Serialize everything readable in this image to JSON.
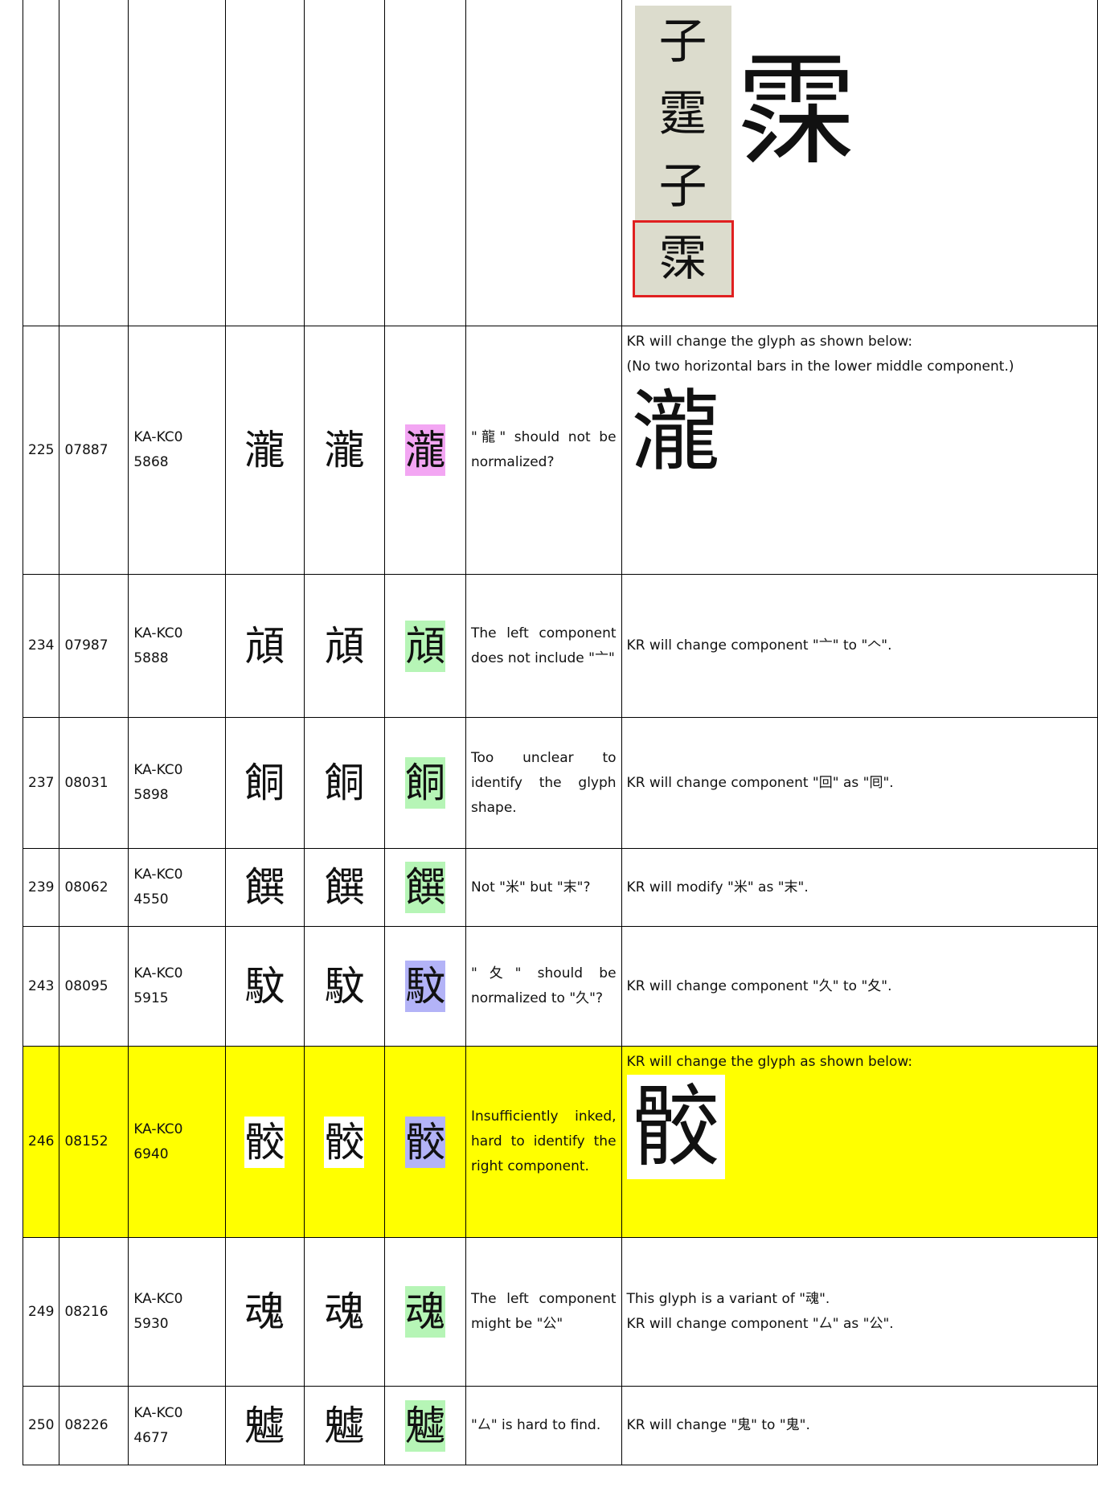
{
  "table": {
    "rows": [
      {
        "scan_text": [
          "子",
          "霆",
          "子",
          "霂"
        ],
        "response_glyph": "霂"
      },
      {
        "no": "225",
        "code": "07887",
        "source": "KA-KC0 5868",
        "glyph": "瀧",
        "scan": "瀧",
        "proposed": "瀧",
        "proposed_color": "#f3a6f3",
        "comment": "\"龍\" should not be normalized?",
        "response": [
          "KR will change the glyph as shown below:",
          "(No two horizontal bars in the lower middle component.)"
        ],
        "response_glyph": "瀧"
      },
      {
        "no": "234",
        "code": "07987",
        "source": "KA-KC0 5888",
        "glyph": "頏",
        "scan": "頏",
        "proposed": "頏",
        "proposed_color": "#b6f5b6",
        "comment": "The left component does not include \"亠\"",
        "response": [
          "KR will change component \"亠\" to \"𠆢\"."
        ]
      },
      {
        "no": "237",
        "code": "08031",
        "source": "KA-KC0 5898",
        "glyph": "餇",
        "scan": "餇",
        "proposed": "餇",
        "proposed_color": "#b6f5b6",
        "comment": "Too unclear to identify the glyph shape.",
        "response": [
          "KR will change component \"回\" as \"囘\"."
        ]
      },
      {
        "no": "239",
        "code": "08062",
        "source": "KA-KC0 4550",
        "glyph": "饌",
        "scan": "饌",
        "proposed": "饌",
        "proposed_color": "#b6f5b6",
        "comment": "Not \"米\" but \"末\"?",
        "response": [
          "KR will modify \"米\" as \"末\"."
        ]
      },
      {
        "no": "243",
        "code": "08095",
        "source": "KA-KC0 5915",
        "glyph": "馼",
        "scan": "馼",
        "proposed": "馼",
        "proposed_color": "#b3b3f7",
        "comment": "\"夂\" should be normalized to \"久\"?",
        "response": [
          "KR will change component \"久\" to \"夂\"."
        ]
      },
      {
        "no": "246",
        "code": "08152",
        "source": "KA-KC0 6940",
        "glyph": "骹",
        "scan": "骹",
        "proposed": "骹",
        "proposed_color": "#b3b3f7",
        "row_color": "#ffff00",
        "comment": "Insufficiently inked, hard to identify the right component.",
        "response": [
          "KR will change the glyph as shown below:"
        ],
        "response_glyph": "骹"
      },
      {
        "no": "249",
        "code": "08216",
        "source": "KA-KC0 5930",
        "glyph": "魂",
        "scan": "魂",
        "proposed": "魂",
        "proposed_color": "#b6f5b6",
        "comment": "The left component might be \"公\"",
        "response": [
          "This glyph is a variant of \"魂\".",
          "KR will change component \"厶\" as \"公\"."
        ]
      },
      {
        "no": "250",
        "code": "08226",
        "source": "KA-KC0 4677",
        "glyph": "魖",
        "scan": "魖",
        "proposed": "魖",
        "proposed_color": "#b6f5b6",
        "comment": "\"厶\" is hard to find.",
        "response": [
          "KR will change \"鬼\" to \"鬼\"."
        ]
      }
    ]
  }
}
